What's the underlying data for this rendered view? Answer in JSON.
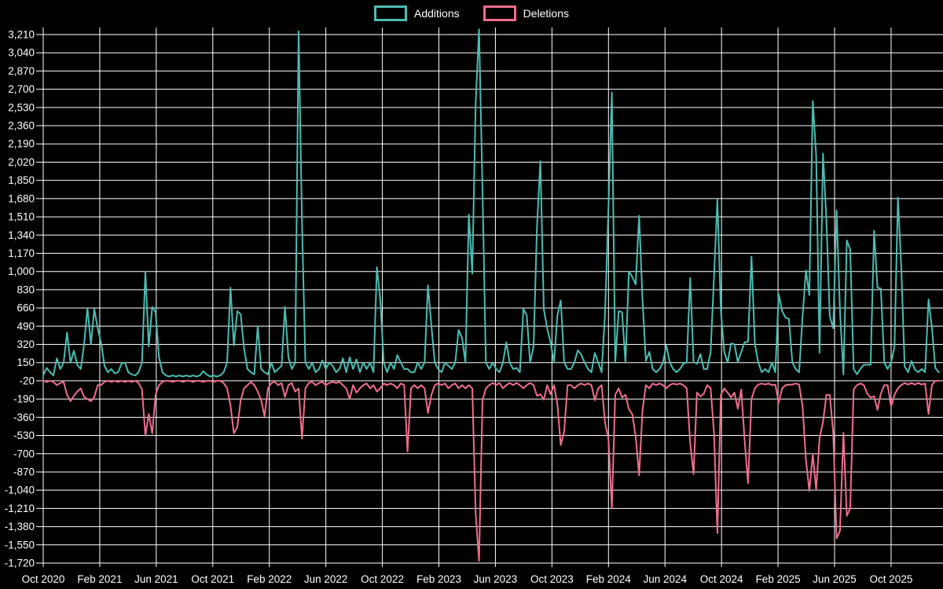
{
  "legend": {
    "additions_label": "Additions",
    "deletions_label": "Deletions"
  },
  "colors": {
    "background": "#000000",
    "grid": "#ffffff",
    "text": "#ffffff",
    "additions": "#4cbcb0",
    "deletions": "#f06d8d"
  },
  "chart_data": {
    "type": "line",
    "title": "",
    "xlabel": "",
    "ylabel": "",
    "grid": true,
    "legend_position": "top-center",
    "x_unit": "week",
    "ylim": [
      -1720,
      3210
    ],
    "y_axis": {
      "tick_labels": [
        "3,210",
        "3,040",
        "2,870",
        "2,700",
        "2,530",
        "2,360",
        "2,190",
        "2,020",
        "1,850",
        "1,680",
        "1,510",
        "1,340",
        "1,170",
        "1,000",
        "830",
        "660",
        "490",
        "320",
        "150",
        "-20",
        "-190",
        "-360",
        "-530",
        "-700",
        "-870",
        "-1,040",
        "-1,210",
        "-1,380",
        "-1,550",
        "-1,720"
      ],
      "tick_values": [
        3210,
        3040,
        2870,
        2700,
        2530,
        2360,
        2190,
        2020,
        1850,
        1680,
        1510,
        1340,
        1170,
        1000,
        830,
        660,
        490,
        320,
        150,
        -20,
        -190,
        -360,
        -530,
        -700,
        -870,
        -1040,
        -1210,
        -1380,
        -1550,
        -1720
      ]
    },
    "x_axis": {
      "tick_labels": [
        "Oct 2020",
        "Feb 2021",
        "Jun 2021",
        "Oct 2021",
        "Feb 2022",
        "Jun 2022",
        "Oct 2022",
        "Feb 2023",
        "Jun 2023",
        "Oct 2023",
        "Feb 2024",
        "Jun 2024",
        "Oct 2024",
        "Feb 2025",
        "Jun 2025",
        "Oct 2025"
      ]
    },
    "series": [
      {
        "name": "Additions",
        "color": "#4cbcb0",
        "values": [
          30,
          100,
          60,
          30,
          190,
          90,
          150,
          430,
          150,
          260,
          130,
          90,
          320,
          660,
          320,
          650,
          470,
          330,
          120,
          60,
          90,
          50,
          60,
          140,
          150,
          60,
          40,
          30,
          60,
          150,
          1000,
          300,
          670,
          620,
          200,
          60,
          30,
          20,
          30,
          20,
          30,
          20,
          30,
          20,
          30,
          20,
          30,
          70,
          40,
          20,
          30,
          20,
          30,
          60,
          150,
          850,
          310,
          630,
          600,
          280,
          90,
          60,
          40,
          490,
          90,
          60,
          40,
          150,
          60,
          90,
          120,
          670,
          200,
          90,
          150,
          3240,
          1450,
          150,
          90,
          150,
          60,
          90,
          170,
          90,
          150,
          120,
          60,
          90,
          190,
          60,
          200,
          90,
          180,
          60,
          150,
          90,
          150,
          60,
          1040,
          730,
          150,
          60,
          150,
          90,
          220,
          150,
          90,
          90,
          60,
          60,
          150,
          90,
          150,
          870,
          490,
          150,
          90,
          60,
          150,
          120,
          90,
          150,
          455,
          380,
          150,
          1530,
          980,
          2570,
          3260,
          1760,
          150,
          90,
          150,
          90,
          60,
          150,
          340,
          150,
          90,
          100,
          60,
          650,
          590,
          150,
          300,
          1410,
          2030,
          650,
          470,
          340,
          150,
          590,
          730,
          150,
          90,
          90,
          150,
          265,
          225,
          150,
          90,
          60,
          240,
          150,
          60,
          605,
          1600,
          2670,
          150,
          630,
          620,
          150,
          1000,
          950,
          880,
          1520,
          740,
          165,
          250,
          90,
          60,
          90,
          150,
          310,
          150,
          90,
          60,
          90,
          140,
          150,
          940,
          155,
          140,
          230,
          90,
          90,
          250,
          950,
          1670,
          640,
          250,
          150,
          330,
          320,
          155,
          250,
          340,
          345,
          1140,
          325,
          150,
          60,
          90,
          60,
          150,
          60,
          790,
          630,
          570,
          560,
          150,
          90,
          60,
          580,
          1010,
          780,
          2590,
          2080,
          240,
          2100,
          1490,
          580,
          470,
          1570,
          630,
          40,
          1290,
          1205,
          90,
          40,
          90,
          130,
          130,
          130,
          1380,
          850,
          840,
          150,
          90,
          150,
          300,
          1690,
          1040,
          115,
          60,
          165,
          85,
          60,
          90,
          60,
          740,
          480,
          100,
          60
        ]
      },
      {
        "name": "Deletions",
        "color": "#f06d8d",
        "values": [
          -20,
          -30,
          -20,
          -30,
          -60,
          -40,
          -30,
          -150,
          -210,
          -160,
          -120,
          -90,
          -170,
          -190,
          -210,
          -170,
          -60,
          -60,
          -30,
          -20,
          -30,
          -20,
          -30,
          -20,
          -30,
          -20,
          -30,
          -20,
          -40,
          -100,
          -530,
          -330,
          -510,
          -150,
          -60,
          -30,
          -20,
          -20,
          -30,
          -20,
          -20,
          -30,
          -20,
          -20,
          -30,
          -20,
          -20,
          -30,
          -20,
          -20,
          -30,
          -20,
          -20,
          -40,
          -90,
          -250,
          -510,
          -450,
          -200,
          -90,
          -60,
          -30,
          -60,
          -120,
          -200,
          -350,
          -90,
          -40,
          -30,
          -60,
          -40,
          -170,
          -60,
          -40,
          -120,
          -90,
          -560,
          -90,
          -40,
          -30,
          -60,
          -40,
          -30,
          -60,
          -40,
          -30,
          -40,
          -30,
          -60,
          -90,
          -190,
          -60,
          -130,
          -90,
          -60,
          -45,
          -90,
          -60,
          -120,
          -90,
          -45,
          -60,
          -45,
          -60,
          -90,
          -45,
          -60,
          -680,
          -90,
          -60,
          -90,
          -60,
          -90,
          -320,
          -150,
          -60,
          -45,
          -60,
          -45,
          -90,
          -60,
          -45,
          -90,
          -60,
          -90,
          -60,
          -90,
          -1260,
          -1700,
          -200,
          -90,
          -60,
          -40,
          -60,
          -40,
          -90,
          -60,
          -40,
          -60,
          -40,
          -60,
          -90,
          -60,
          -40,
          -60,
          -160,
          -145,
          -195,
          -60,
          -145,
          -60,
          -240,
          -620,
          -490,
          -60,
          -60,
          -90,
          -60,
          -45,
          -60,
          -45,
          -60,
          -200,
          -90,
          -60,
          -410,
          -565,
          -1210,
          -150,
          -90,
          -175,
          -150,
          -285,
          -330,
          -540,
          -900,
          -295,
          -60,
          -90,
          -45,
          -60,
          -45,
          -60,
          -90,
          -60,
          -45,
          -55,
          -45,
          -60,
          -90,
          -600,
          -890,
          -130,
          -165,
          -140,
          -60,
          -90,
          -505,
          -1440,
          -150,
          -90,
          -130,
          -175,
          -130,
          -280,
          -100,
          -580,
          -975,
          -190,
          -90,
          -55,
          -45,
          -55,
          -45,
          -60,
          -55,
          -225,
          -90,
          -60,
          -55,
          -55,
          -45,
          -55,
          -260,
          -760,
          -1046,
          -705,
          -1036,
          -555,
          -405,
          -150,
          -150,
          -505,
          -1490,
          -1420,
          -505,
          -1280,
          -1210,
          -100,
          -60,
          -45,
          -60,
          -140,
          -175,
          -165,
          -290,
          -140,
          -60,
          -60,
          -260,
          -150,
          -90,
          -60,
          -40,
          -55,
          -40,
          -55,
          -40,
          -55,
          -45,
          -330,
          -60,
          -20,
          -20
        ]
      }
    ]
  }
}
